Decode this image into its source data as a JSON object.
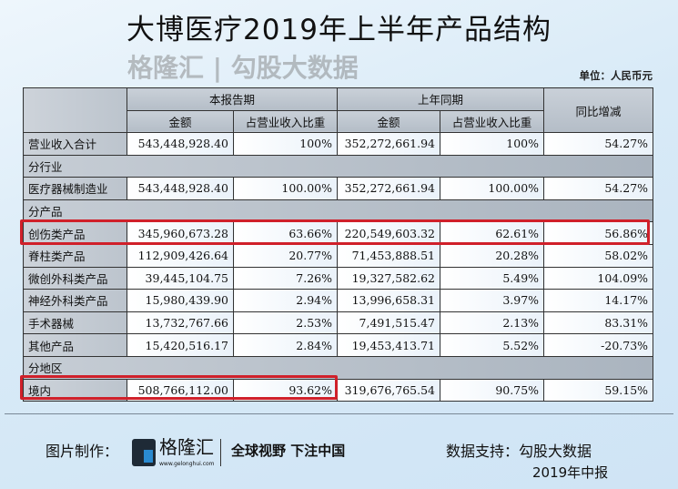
{
  "title": "大博医疗2019年上半年产品结构",
  "unit": "单位：人民币元",
  "header": {
    "current": "本报告期",
    "prior": "上年同期",
    "yoy": "同比增减",
    "amount": "金额",
    "share": "占营业收入比重"
  },
  "rows": [
    {
      "type": "data",
      "label": "营业收入合计",
      "cells": [
        "543,448,928.40",
        "100%",
        "352,272,661.94",
        "100%",
        "54.27%"
      ]
    },
    {
      "type": "section",
      "label": "分行业"
    },
    {
      "type": "data",
      "label": "医疗器械制造业",
      "cells": [
        "543,448,928.40",
        "100.00%",
        "352,272,661.94",
        "100.00%",
        "54.27%"
      ]
    },
    {
      "type": "section",
      "label": "分产品"
    },
    {
      "type": "data",
      "label": "创伤类产品",
      "cells": [
        "345,960,673.28",
        "63.66%",
        "220,549,603.32",
        "62.61%",
        "56.86%"
      ],
      "highlight": "full"
    },
    {
      "type": "data",
      "label": "脊柱类产品",
      "cells": [
        "112,909,426.64",
        "20.77%",
        "71,453,888.51",
        "20.28%",
        "58.02%"
      ]
    },
    {
      "type": "data",
      "label": "微创外科类产品",
      "cells": [
        "39,445,104.75",
        "7.26%",
        "19,327,582.62",
        "5.49%",
        "104.09%"
      ]
    },
    {
      "type": "data",
      "label": "神经外科类产品",
      "cells": [
        "15,980,439.90",
        "2.94%",
        "13,996,658.31",
        "3.97%",
        "14.17%"
      ]
    },
    {
      "type": "data",
      "label": "手术器械",
      "cells": [
        "13,732,767.66",
        "2.53%",
        "7,491,515.47",
        "2.13%",
        "83.31%"
      ]
    },
    {
      "type": "data",
      "label": "其他产品",
      "cells": [
        "15,420,516.17",
        "2.84%",
        "19,453,413.71",
        "5.52%",
        "-20.73%"
      ]
    },
    {
      "type": "section",
      "label": "分地区"
    },
    {
      "type": "data",
      "label": "境内",
      "cells": [
        "508,766,112.00",
        "93.62%",
        "319,676,765.54",
        "90.75%",
        "59.15%"
      ],
      "highlight": "partial"
    }
  ],
  "watermark": "格隆汇 | 勾股大数据",
  "footer": {
    "made_by": "图片制作：",
    "brand": "格隆汇",
    "brand_url": "www.gelonghui.com",
    "slogan": "全球视野 下注中国",
    "source": "数据支持：勾股大数据",
    "report": "2019年中报"
  },
  "colors": {
    "highlight": "#d0202a"
  }
}
